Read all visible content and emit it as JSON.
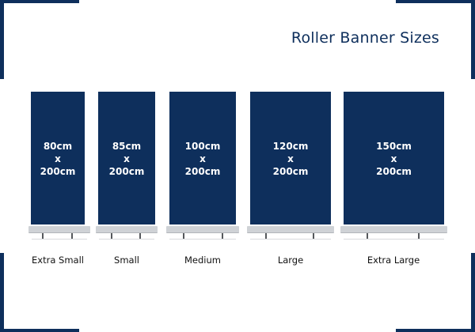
{
  "title": "Roller Banner Sizes",
  "colors": {
    "accent": "#0e2f5c",
    "stand": "#cfd2d6",
    "background": "#ffffff"
  },
  "banners": [
    {
      "width_text": "80cm",
      "x_text": "x",
      "height_text": "200cm",
      "label": "Extra Small"
    },
    {
      "width_text": "85cm",
      "x_text": "x",
      "height_text": "200cm",
      "label": "Small"
    },
    {
      "width_text": "100cm",
      "x_text": "x",
      "height_text": "200cm",
      "label": "Medium"
    },
    {
      "width_text": "120cm",
      "x_text": "x",
      "height_text": "200cm",
      "label": "Large"
    },
    {
      "width_text": "150cm",
      "x_text": "x",
      "height_text": "200cm",
      "label": "Extra Large"
    }
  ]
}
